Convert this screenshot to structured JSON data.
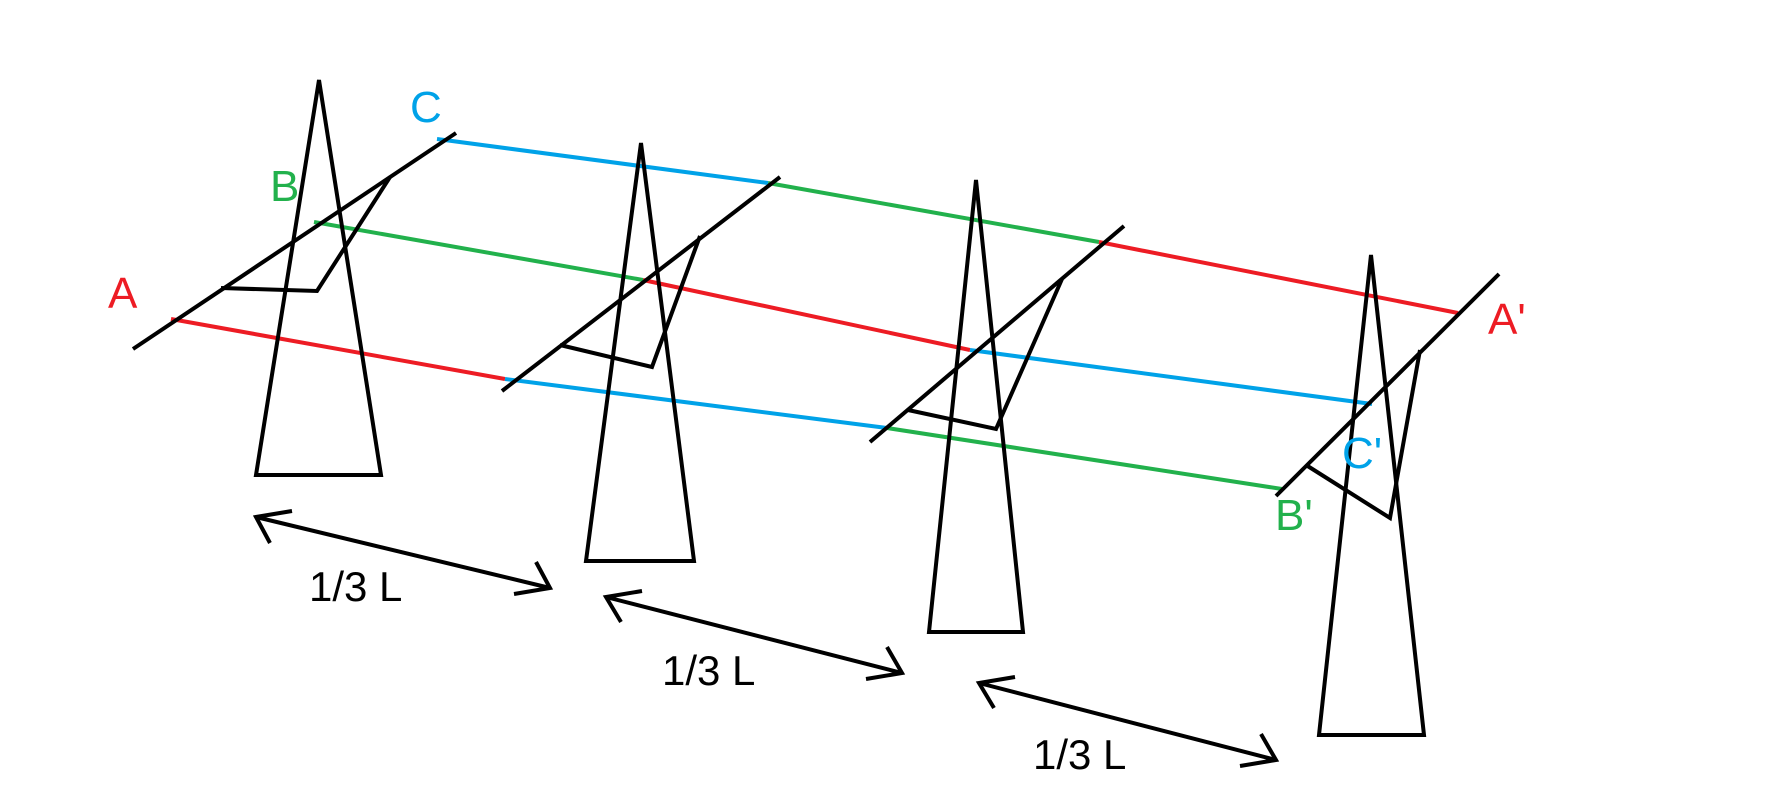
{
  "colors": {
    "phase_a": "#ed1c24",
    "phase_b": "#22b14c",
    "phase_c": "#00a2e8",
    "structure": "#000000",
    "background": "#ffffff"
  },
  "labels": {
    "a_start": "A",
    "b_start": "B",
    "c_start": "C",
    "a_end": "A'",
    "b_end": "B'",
    "c_end": "C'"
  },
  "spans": [
    {
      "label": "1/3 L"
    },
    {
      "label": "1/3 L"
    },
    {
      "label": "1/3 L"
    }
  ]
}
